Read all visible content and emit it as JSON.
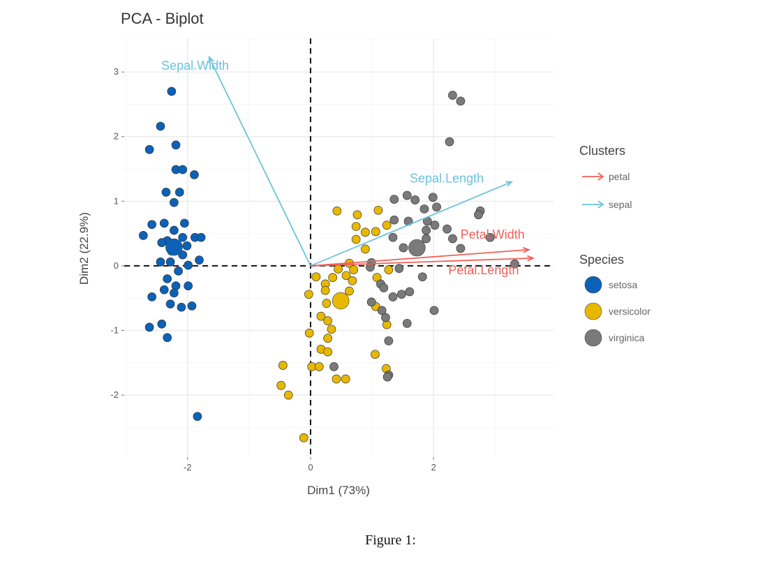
{
  "caption": "Figure 1:",
  "chart_data": {
    "type": "scatter",
    "title": "PCA - Biplot",
    "xlabel": "Dim1 (73%)",
    "ylabel": "Dim2 (22.9%)",
    "xlim": [
      -3.03,
      3.95
    ],
    "ylim": [
      -2.96,
      3.52
    ],
    "xticks": [
      -2,
      0,
      2
    ],
    "yticks": [
      -2,
      -1,
      0,
      1,
      2,
      3
    ],
    "grid": true,
    "reference_lines": {
      "x": 0,
      "y": 0,
      "style": "dashed"
    },
    "legend_position": "right",
    "species_legend_title": "Species",
    "clusters_legend_title": "Clusters",
    "series": [
      {
        "name": "setosa",
        "color": "#0b62b8",
        "centroid": [
          -2.22,
          0.29
        ],
        "points": [
          [
            -2.26,
            2.7
          ],
          [
            -2.44,
            2.16
          ],
          [
            -2.62,
            1.8
          ],
          [
            -2.19,
            1.87
          ],
          [
            -2.19,
            1.49
          ],
          [
            -2.08,
            1.49
          ],
          [
            -1.89,
            1.41
          ],
          [
            -2.35,
            1.14
          ],
          [
            -2.13,
            1.14
          ],
          [
            -2.22,
            0.98
          ],
          [
            -2.58,
            0.64
          ],
          [
            -2.38,
            0.66
          ],
          [
            -2.05,
            0.66
          ],
          [
            -2.22,
            0.55
          ],
          [
            -2.72,
            0.47
          ],
          [
            -1.88,
            0.44
          ],
          [
            -2.08,
            0.44
          ],
          [
            -1.78,
            0.44
          ],
          [
            -2.33,
            0.39
          ],
          [
            -2.42,
            0.36
          ],
          [
            -2.01,
            0.31
          ],
          [
            -1.81,
            0.09
          ],
          [
            -2.44,
            0.06
          ],
          [
            -2.28,
            0.06
          ],
          [
            -2.08,
            0.17
          ],
          [
            -2.26,
            0.23
          ],
          [
            -1.99,
            0.01
          ],
          [
            -2.15,
            -0.08
          ],
          [
            -2.33,
            -0.2
          ],
          [
            -2.19,
            -0.31
          ],
          [
            -2.38,
            -0.37
          ],
          [
            -1.99,
            -0.31
          ],
          [
            -2.22,
            -0.42
          ],
          [
            -2.58,
            -0.48
          ],
          [
            -2.28,
            -0.59
          ],
          [
            -2.1,
            -0.64
          ],
          [
            -1.93,
            -0.62
          ],
          [
            -2.42,
            -0.9
          ],
          [
            -2.62,
            -0.95
          ],
          [
            -2.33,
            -1.11
          ],
          [
            -1.84,
            -2.33
          ]
        ]
      },
      {
        "name": "versicolor",
        "color": "#e8b800",
        "centroid": [
          0.49,
          -0.54
        ],
        "points": [
          [
            0.43,
            0.85
          ],
          [
            0.76,
            0.79
          ],
          [
            1.1,
            0.86
          ],
          [
            0.74,
            0.61
          ],
          [
            0.89,
            0.52
          ],
          [
            1.06,
            0.53
          ],
          [
            1.24,
            0.63
          ],
          [
            0.74,
            0.41
          ],
          [
            0.89,
            0.26
          ],
          [
            0.63,
            0.04
          ],
          [
            0.45,
            -0.05
          ],
          [
            0.7,
            -0.06
          ],
          [
            0.09,
            -0.17
          ],
          [
            0.36,
            -0.18
          ],
          [
            0.58,
            -0.15
          ],
          [
            0.68,
            -0.23
          ],
          [
            0.24,
            -0.28
          ],
          [
            0.24,
            -0.38
          ],
          [
            0.63,
            -0.39
          ],
          [
            -0.03,
            -0.44
          ],
          [
            0.26,
            -0.58
          ],
          [
            1.08,
            -0.18
          ],
          [
            1.27,
            -0.06
          ],
          [
            0.17,
            -0.78
          ],
          [
            0.28,
            -0.85
          ],
          [
            0.34,
            -0.98
          ],
          [
            0.28,
            -1.12
          ],
          [
            -0.02,
            -1.04
          ],
          [
            0.17,
            -1.29
          ],
          [
            0.28,
            -1.33
          ],
          [
            0.02,
            -1.56
          ],
          [
            0.14,
            -1.56
          ],
          [
            0.42,
            -1.75
          ],
          [
            0.57,
            -1.75
          ],
          [
            -0.45,
            -1.54
          ],
          [
            -0.48,
            -1.85
          ],
          [
            -0.36,
            -2.0
          ],
          [
            1.05,
            -1.37
          ],
          [
            1.24,
            -0.91
          ],
          [
            1.06,
            -0.63
          ],
          [
            1.23,
            -1.59
          ],
          [
            -0.11,
            -2.66
          ]
        ]
      },
      {
        "name": "virginica",
        "color": "#7a7a7a",
        "centroid": [
          1.73,
          0.28
        ],
        "points": [
          [
            2.31,
            2.64
          ],
          [
            2.44,
            2.55
          ],
          [
            2.26,
            1.92
          ],
          [
            1.36,
            1.03
          ],
          [
            1.57,
            1.09
          ],
          [
            1.7,
            1.02
          ],
          [
            1.99,
            1.06
          ],
          [
            2.05,
            0.91
          ],
          [
            1.85,
            0.88
          ],
          [
            2.76,
            0.85
          ],
          [
            2.73,
            0.79
          ],
          [
            1.36,
            0.71
          ],
          [
            1.59,
            0.69
          ],
          [
            1.9,
            0.69
          ],
          [
            2.02,
            0.63
          ],
          [
            2.22,
            0.57
          ],
          [
            1.88,
            0.55
          ],
          [
            1.34,
            0.44
          ],
          [
            1.88,
            0.42
          ],
          [
            2.92,
            0.44
          ],
          [
            2.31,
            0.42
          ],
          [
            1.51,
            0.28
          ],
          [
            2.44,
            0.27
          ],
          [
            0.99,
            0.05
          ],
          [
            0.97,
            -0.02
          ],
          [
            1.44,
            -0.04
          ],
          [
            3.32,
            0.03
          ],
          [
            1.82,
            -0.17
          ],
          [
            1.14,
            -0.28
          ],
          [
            1.19,
            -0.34
          ],
          [
            1.34,
            -0.48
          ],
          [
            1.48,
            -0.44
          ],
          [
            1.61,
            -0.4
          ],
          [
            0.99,
            -0.56
          ],
          [
            1.16,
            -0.69
          ],
          [
            1.22,
            -0.8
          ],
          [
            2.01,
            -0.69
          ],
          [
            1.57,
            -0.89
          ],
          [
            1.27,
            -1.16
          ],
          [
            0.38,
            -1.56
          ],
          [
            1.27,
            -1.69
          ],
          [
            1.25,
            -1.72
          ]
        ]
      }
    ],
    "variables": [
      {
        "name": "Sepal.Width",
        "cluster": "sepal",
        "x": -1.65,
        "y": 3.23
      },
      {
        "name": "Sepal.Length",
        "cluster": "sepal",
        "x": 3.27,
        "y": 1.3
      },
      {
        "name": "Petal.Width",
        "cluster": "petal",
        "x": 3.55,
        "y": 0.25
      },
      {
        "name": "Petal.Length",
        "cluster": "petal",
        "x": 3.62,
        "y": 0.12
      }
    ],
    "clusters": [
      {
        "name": "petal",
        "color": "#f0605a"
      },
      {
        "name": "sepal",
        "color": "#6cc3de"
      }
    ]
  }
}
